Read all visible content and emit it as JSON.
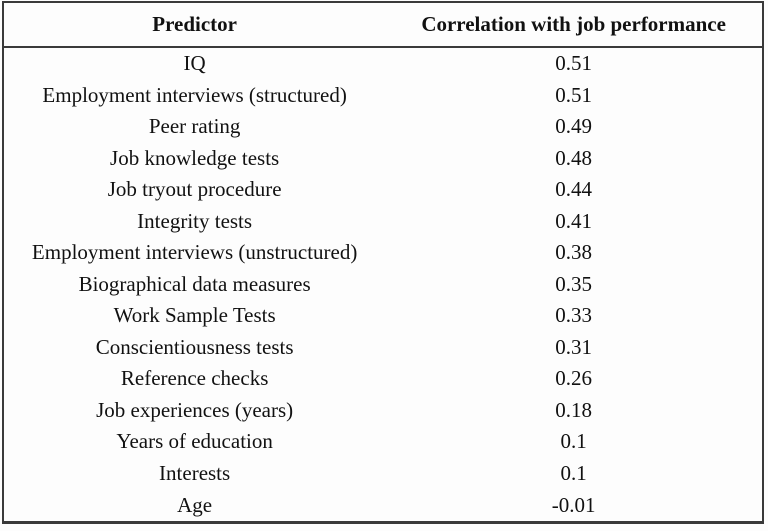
{
  "table": {
    "columns": [
      "Predictor",
      "Correlation with job performance"
    ],
    "rows": [
      {
        "predictor": "IQ",
        "correlation": "0.51"
      },
      {
        "predictor": "Employment interviews (structured)",
        "correlation": "0.51"
      },
      {
        "predictor": "Peer rating",
        "correlation": "0.49"
      },
      {
        "predictor": "Job knowledge tests",
        "correlation": "0.48"
      },
      {
        "predictor": "Job tryout procedure",
        "correlation": "0.44"
      },
      {
        "predictor": "Integrity tests",
        "correlation": "0.41"
      },
      {
        "predictor": "Employment interviews (unstructured)",
        "correlation": "0.38"
      },
      {
        "predictor": "Biographical data measures",
        "correlation": "0.35"
      },
      {
        "predictor": "Work Sample Tests",
        "correlation": "0.33"
      },
      {
        "predictor": "Conscientiousness tests",
        "correlation": "0.31"
      },
      {
        "predictor": "Reference checks",
        "correlation": "0.26"
      },
      {
        "predictor": "Job experiences (years)",
        "correlation": "0.18"
      },
      {
        "predictor": "Years of education",
        "correlation": "0.1"
      },
      {
        "predictor": "Interests",
        "correlation": "0.1"
      },
      {
        "predictor": "Age",
        "correlation": "-0.01"
      }
    ],
    "colors": {
      "border": "#3a3a3a",
      "text": "#111111",
      "background": "#fdfdfd"
    }
  }
}
